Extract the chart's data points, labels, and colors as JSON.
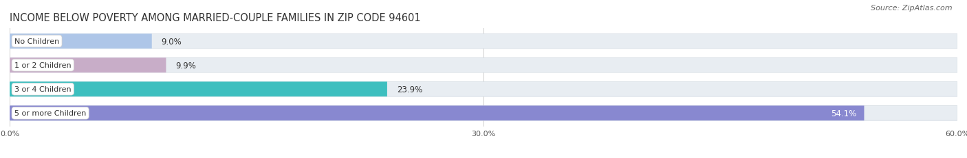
{
  "title": "INCOME BELOW POVERTY AMONG MARRIED-COUPLE FAMILIES IN ZIP CODE 94601",
  "source": "Source: ZipAtlas.com",
  "categories": [
    "No Children",
    "1 or 2 Children",
    "3 or 4 Children",
    "5 or more Children"
  ],
  "values": [
    9.0,
    9.9,
    23.9,
    54.1
  ],
  "bar_colors": [
    "#aec6e8",
    "#c8adc8",
    "#3dbfbf",
    "#8888d0"
  ],
  "background_color": "#ffffff",
  "bar_bg_color": "#e8edf2",
  "xlim": [
    0,
    60
  ],
  "xticks": [
    0.0,
    30.0,
    60.0
  ],
  "xtick_labels": [
    "0.0%",
    "30.0%",
    "60.0%"
  ],
  "title_fontsize": 10.5,
  "bar_label_fontsize": 8.5,
  "category_fontsize": 8,
  "source_fontsize": 8
}
